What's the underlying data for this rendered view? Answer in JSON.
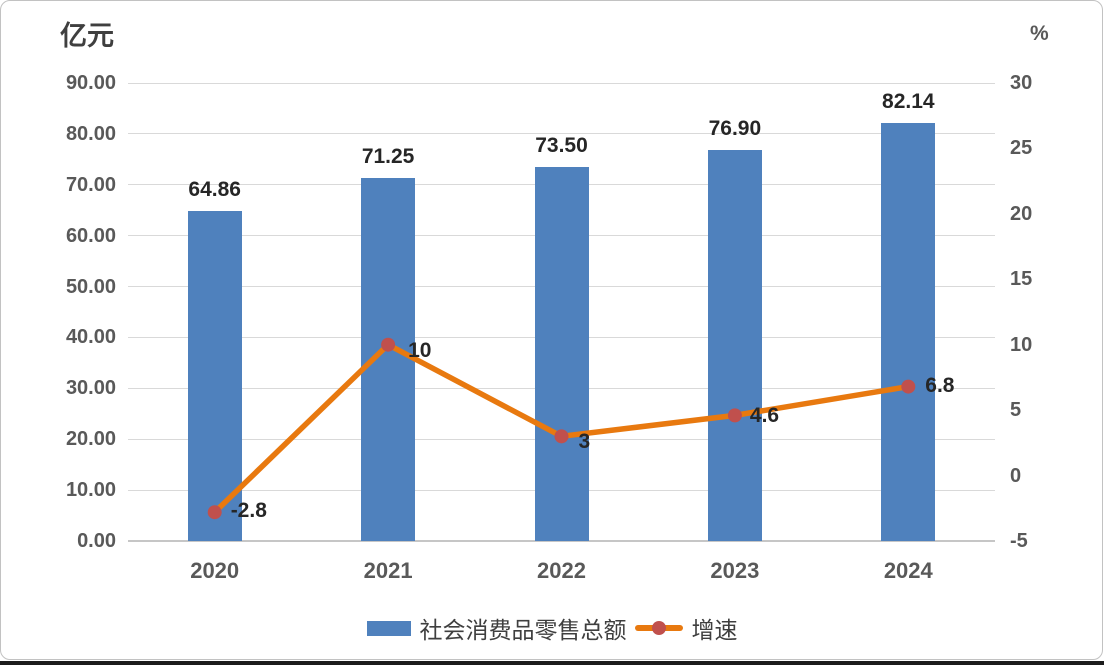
{
  "chart_data": {
    "type": "bar",
    "combo": "bar+line",
    "categories": [
      "2020",
      "2021",
      "2022",
      "2023",
      "2024"
    ],
    "series": [
      {
        "name": "社会消费品零售总额",
        "type": "bar",
        "axis": "left",
        "values": [
          64.86,
          71.25,
          73.5,
          76.9,
          82.14
        ],
        "labels": [
          "64.86",
          "71.25",
          "73.50",
          "76.90",
          "82.14"
        ],
        "color": "#4F81BD"
      },
      {
        "name": "增速",
        "type": "line",
        "axis": "right",
        "values": [
          -2.8,
          10,
          3,
          4.6,
          6.8
        ],
        "labels": [
          "-2.8",
          "10",
          "3",
          "4.6",
          "6.8"
        ],
        "line_color": "#E8790F",
        "marker_color": "#C0504D"
      }
    ],
    "left_axis": {
      "title": "亿元",
      "min": 0,
      "max": 90,
      "step": 10,
      "tick_labels": [
        "0.00",
        "10.00",
        "20.00",
        "30.00",
        "40.00",
        "50.00",
        "60.00",
        "70.00",
        "80.00",
        "90.00"
      ]
    },
    "right_axis": {
      "title": "%",
      "min": -5,
      "max": 30,
      "step": 5,
      "tick_labels": [
        "-5",
        "0",
        "5",
        "10",
        "15",
        "20",
        "25",
        "30"
      ]
    },
    "grid": true,
    "legend_position": "bottom"
  }
}
